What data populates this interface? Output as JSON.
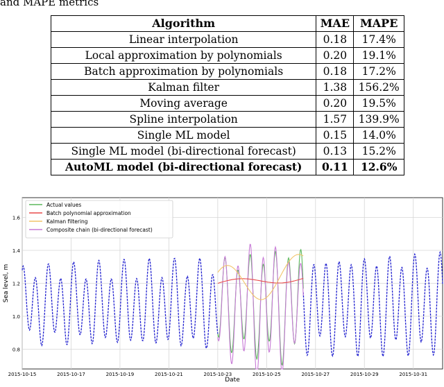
{
  "caption_fragment": "and MAPE metrics",
  "table": {
    "headers": [
      "Algorithm",
      "MAE",
      "MAPE"
    ],
    "rows": [
      {
        "algorithm": "Linear interpolation",
        "mae": "0.18",
        "mape": "17.4%"
      },
      {
        "algorithm": "Local approximation by polynomials",
        "mae": "0.20",
        "mape": "19.1%"
      },
      {
        "algorithm": "Batch approximation by polynomials",
        "mae": "0.18",
        "mape": "17.2%"
      },
      {
        "algorithm": "Kalman filter",
        "mae": "1.38",
        "mape": "156.2%"
      },
      {
        "algorithm": "Moving average",
        "mae": "0.20",
        "mape": "19.5%"
      },
      {
        "algorithm": "Spline interpolation",
        "mae": "1.57",
        "mape": "139.9%"
      },
      {
        "algorithm": "Single ML model",
        "mae": "0.15",
        "mape": "14.0%"
      },
      {
        "algorithm": "Single ML model (bi-directional forecast)",
        "mae": "0.13",
        "mape": "15.2%"
      },
      {
        "algorithm": "AutoML model (bi-directional forecast)",
        "mae": "0.11",
        "mape": "12.6%",
        "bold": true
      }
    ]
  },
  "chart_data": {
    "type": "line",
    "title": "",
    "xlabel": "Date",
    "ylabel": "Sea level, m",
    "x_ticks": [
      "2015-10-15",
      "2015-10-17",
      "2015-10-19",
      "2015-10-21",
      "2015-10-23",
      "2015-10-25",
      "2015-10-27",
      "2015-10-29",
      "2015-10-31"
    ],
    "y_ticks": [
      "0.8",
      "1.0",
      "1.2",
      "1.4",
      "1.6"
    ],
    "xlim_days": [
      0,
      17.2
    ],
    "ylim": [
      0.68,
      1.72
    ],
    "grid": true,
    "legend_placement": "top-left",
    "gap_days": [
      8.0,
      11.5
    ],
    "series": [
      {
        "name": "Actual values",
        "color": "#5bb85b",
        "style": "solid",
        "kind": "actual"
      },
      {
        "name": "Batch polynomial approximation",
        "color": "#e84a4a",
        "style": "solid",
        "kind": "batch"
      },
      {
        "name": "Kalman filtering",
        "color": "#f2c46a",
        "style": "solid",
        "kind": "kalman"
      },
      {
        "name": "Composite chain (bi-directional forecast)",
        "color": "#c77ad6",
        "style": "solid",
        "kind": "composite"
      },
      {
        "name": "",
        "color": "#1f1fcf",
        "style": "dashed",
        "kind": "observed"
      }
    ],
    "tide": {
      "mean": 1.07,
      "period_days": 0.517,
      "amplitude_start": 0.2,
      "amplitude_end": 0.27,
      "secondary_period_days": 1.0,
      "secondary_amplitude": 0.06
    }
  }
}
